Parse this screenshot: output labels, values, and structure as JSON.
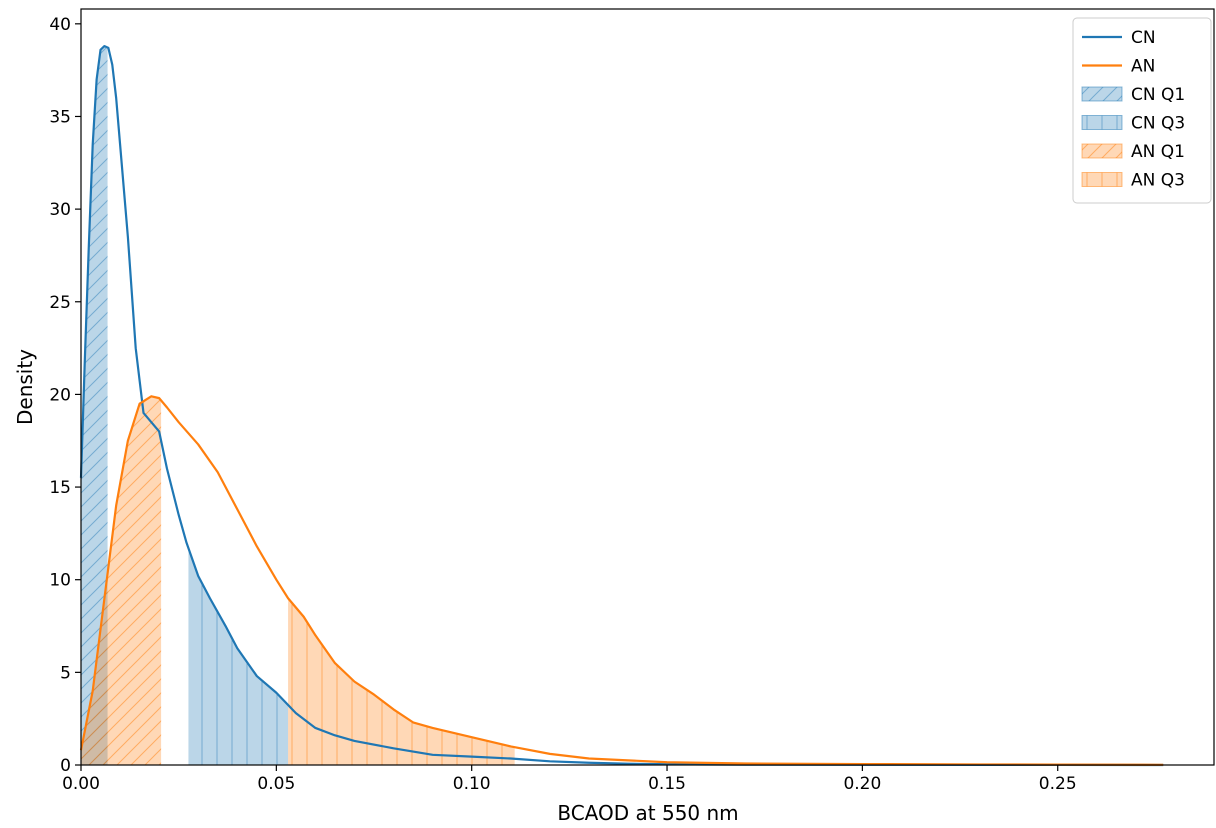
{
  "chart_data": {
    "type": "area",
    "title": "",
    "xlabel": "BCAOD at 550 nm",
    "ylabel": "Density",
    "xlim": [
      0.0,
      0.29
    ],
    "ylim": [
      0,
      40.8
    ],
    "xticks": [
      0.0,
      0.05,
      0.1,
      0.15,
      0.2,
      0.25
    ],
    "xtick_labels": [
      "0.00",
      "0.05",
      "0.10",
      "0.15",
      "0.20",
      "0.25"
    ],
    "yticks": [
      0,
      5,
      10,
      15,
      20,
      25,
      30,
      35,
      40
    ],
    "ytick_labels": [
      "0",
      "5",
      "10",
      "15",
      "20",
      "25",
      "30",
      "35",
      "40"
    ],
    "grid": false,
    "legend_position": "top-right",
    "colors": {
      "CN": "#1f77b4",
      "AN": "#ff7f0e"
    },
    "series": [
      {
        "name": "CN",
        "x": [
          0.0,
          0.001,
          0.002,
          0.003,
          0.004,
          0.005,
          0.006,
          0.007,
          0.008,
          0.009,
          0.01,
          0.012,
          0.014,
          0.016,
          0.018,
          0.02,
          0.022,
          0.025,
          0.027,
          0.03,
          0.033,
          0.037,
          0.04,
          0.045,
          0.05,
          0.055,
          0.06,
          0.065,
          0.07,
          0.08,
          0.09,
          0.1,
          0.11,
          0.12,
          0.13,
          0.14,
          0.15,
          0.17,
          0.2,
          0.25,
          0.277
        ],
        "y": [
          15.5,
          22.0,
          28.0,
          33.5,
          37.0,
          38.6,
          38.8,
          38.7,
          37.8,
          36.0,
          33.5,
          28.5,
          22.5,
          19.0,
          18.5,
          18.0,
          16.0,
          13.5,
          12.0,
          10.2,
          9.0,
          7.5,
          6.3,
          4.8,
          3.9,
          2.8,
          2.0,
          1.6,
          1.3,
          0.9,
          0.55,
          0.45,
          0.35,
          0.2,
          0.12,
          0.07,
          0.04,
          0.02,
          0.01,
          0.005,
          0.0
        ]
      },
      {
        "name": "AN",
        "x": [
          0.0,
          0.003,
          0.006,
          0.009,
          0.012,
          0.015,
          0.018,
          0.02,
          0.022,
          0.025,
          0.03,
          0.035,
          0.04,
          0.045,
          0.05,
          0.053,
          0.057,
          0.06,
          0.065,
          0.07,
          0.075,
          0.08,
          0.085,
          0.09,
          0.1,
          0.11,
          0.12,
          0.13,
          0.14,
          0.15,
          0.17,
          0.2,
          0.23,
          0.25,
          0.277
        ],
        "y": [
          0.8,
          4.0,
          9.0,
          14.0,
          17.5,
          19.5,
          19.9,
          19.8,
          19.3,
          18.5,
          17.3,
          15.8,
          13.8,
          11.8,
          10.0,
          9.0,
          8.0,
          7.0,
          5.5,
          4.5,
          3.8,
          3.0,
          2.3,
          2.0,
          1.5,
          1.0,
          0.6,
          0.35,
          0.25,
          0.15,
          0.08,
          0.05,
          0.03,
          0.02,
          0.01
        ]
      }
    ],
    "shaded_regions": [
      {
        "name": "CN Q1",
        "series": "CN",
        "x_range": [
          0.0,
          0.0068
        ],
        "hatch": "diagonal"
      },
      {
        "name": "CN Q3",
        "series": "CN",
        "x_range": [
          0.0275,
          0.053
        ],
        "hatch": "vertical"
      },
      {
        "name": "AN Q1",
        "series": "AN",
        "x_range": [
          0.0,
          0.0205
        ],
        "hatch": "diagonal"
      },
      {
        "name": "AN Q3",
        "series": "AN",
        "x_range": [
          0.053,
          0.111
        ],
        "hatch": "vertical"
      }
    ],
    "legend": [
      "CN",
      "AN",
      "CN Q1",
      "CN Q3",
      "AN Q1",
      "AN Q3"
    ]
  }
}
